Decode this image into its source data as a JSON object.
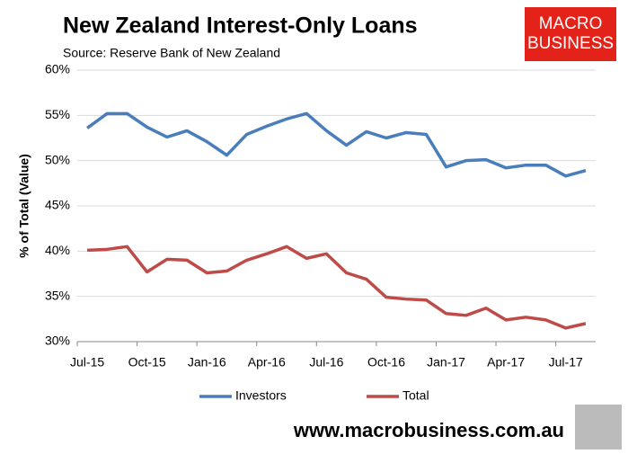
{
  "chart_data": {
    "type": "line",
    "title": "New Zealand Interest-Only Loans",
    "subtitle": "Source: Reserve Bank of New Zealand",
    "y_label": "% of Total (Value)",
    "logo": [
      "MACRO",
      "BUSINESS"
    ],
    "website": "www.macrobusiness.com.au",
    "categories": [
      "Jul-15",
      null,
      null,
      "Oct-15",
      null,
      null,
      "Jan-16",
      null,
      null,
      "Apr-16",
      null,
      null,
      "Jul-16",
      null,
      null,
      "Oct-16",
      null,
      null,
      "Jan-17",
      null,
      null,
      "Apr-17",
      null,
      null,
      "Jul-17",
      null
    ],
    "series": [
      {
        "name": "Investors",
        "color": "#4a7ebb",
        "values": [
          53.6,
          55.2,
          55.2,
          53.7,
          52.6,
          53.3,
          52.1,
          50.6,
          52.9,
          53.8,
          54.6,
          55.2,
          53.3,
          51.7,
          53.2,
          52.5,
          53.1,
          52.9,
          49.3,
          50.0,
          50.1,
          49.2,
          49.5,
          49.5,
          48.3,
          48.9
        ]
      },
      {
        "name": "Total",
        "color": "#be4b48",
        "values": [
          40.1,
          40.2,
          40.5,
          37.7,
          39.1,
          39.0,
          37.6,
          37.8,
          39.0,
          39.7,
          40.5,
          39.2,
          39.7,
          37.6,
          36.9,
          34.9,
          34.7,
          34.6,
          33.1,
          32.9,
          33.7,
          32.4,
          32.7,
          32.4,
          31.5,
          32.0
        ]
      }
    ],
    "ylim": [
      30,
      60
    ],
    "yticks": [
      {
        "value": 30,
        "label": "30%"
      },
      {
        "value": 35,
        "label": "35%"
      },
      {
        "value": 40,
        "label": "40%"
      },
      {
        "value": 45,
        "label": "45%"
      },
      {
        "value": 50,
        "label": "50%"
      },
      {
        "value": 55,
        "label": "55%"
      },
      {
        "value": 60,
        "label": "60%"
      }
    ],
    "grid": true,
    "legend": "bottom"
  }
}
